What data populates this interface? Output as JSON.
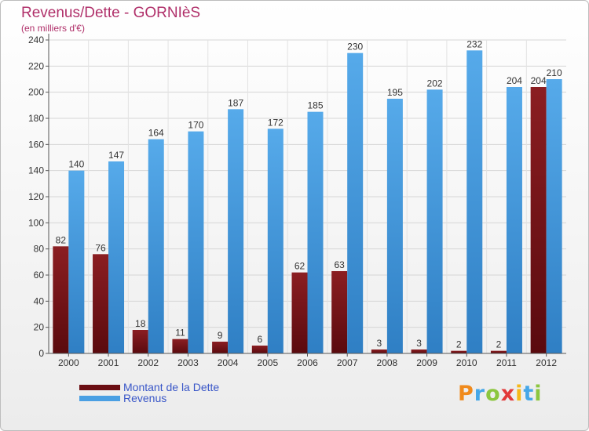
{
  "title": "Revenus/Dette - GORNIèS",
  "subtitle": "(en milliers d'€)",
  "logo": "Proxiti",
  "colors": {
    "debt": "#8b1e22",
    "debt_dark": "#5a0a0e",
    "revenue": "#56aaea",
    "revenue_dark": "#2f7fc4",
    "title": "#b0306a",
    "legend_text": "#3a57c8"
  },
  "chart_data": {
    "type": "bar",
    "title": "Revenus/Dette - GORNIèS",
    "subtitle": "(en milliers d'€)",
    "categories": [
      "2000",
      "2001",
      "2002",
      "2003",
      "2004",
      "2005",
      "2006",
      "2007",
      "2008",
      "2009",
      "2010",
      "2011",
      "2012"
    ],
    "series": [
      {
        "name": "Montant de la Dette",
        "values": [
          82,
          76,
          18,
          11,
          9,
          6,
          62,
          63,
          3,
          3,
          2,
          2,
          204
        ]
      },
      {
        "name": "Revenus",
        "values": [
          140,
          147,
          164,
          170,
          187,
          172,
          185,
          230,
          195,
          202,
          232,
          204,
          210
        ]
      }
    ],
    "ylim": [
      0,
      240
    ],
    "yticks": [
      0,
      20,
      40,
      60,
      80,
      100,
      120,
      140,
      160,
      180,
      200,
      220,
      240
    ],
    "grid": true,
    "legend": "bottom-left"
  }
}
